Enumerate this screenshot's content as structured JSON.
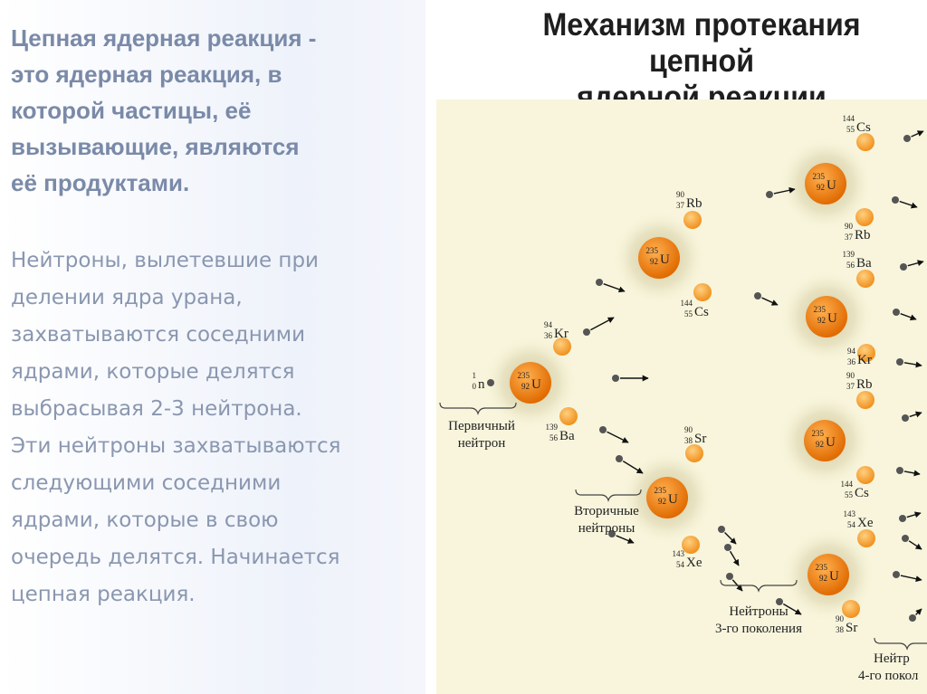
{
  "left_text": {
    "definition": "Цепная ядерная реакция -\nэто ядерная реакция, в\nкоторой частицы, её\nвызывающие, являются\nеё продуктами.",
    "explanation": "Нейтроны, вылетевшие при\nделении ядра урана,\nзахватываются соседними\nядрами, которые делятся\nвыбрасывая 2-3 нейтрона.\nЭти нейтроны захватываются\nследующими соседними\nядрами, которые в свою\nочередь делятся. Начинается\nцепная реакция."
  },
  "diagram": {
    "title": "Механизм протекания цепной\nядерной реакции",
    "uranium": {
      "a": "235",
      "z": "92",
      "sym": "U"
    },
    "primary_neutron": {
      "a": "1",
      "z": "0",
      "sym": "n"
    },
    "fragments": [
      {
        "a": "94",
        "z": "36",
        "sym": "Kr"
      },
      {
        "a": "139",
        "z": "56",
        "sym": "Ba"
      },
      {
        "a": "90",
        "z": "37",
        "sym": "Rb"
      },
      {
        "a": "144",
        "z": "55",
        "sym": "Cs"
      },
      {
        "a": "90",
        "z": "38",
        "sym": "Sr"
      },
      {
        "a": "143",
        "z": "54",
        "sym": "Xe"
      },
      {
        "a": "144",
        "z": "55",
        "sym": "Cs"
      },
      {
        "a": "90",
        "z": "37",
        "sym": "Rb"
      },
      {
        "a": "139",
        "z": "56",
        "sym": "Ba"
      },
      {
        "a": "94",
        "z": "36",
        "sym": "Kr"
      },
      {
        "a": "90",
        "z": "37",
        "sym": "Rb"
      },
      {
        "a": "144",
        "z": "55",
        "sym": "Cs"
      },
      {
        "a": "143",
        "z": "54",
        "sym": "Xe"
      },
      {
        "a": "90",
        "z": "38",
        "sym": "Sr"
      }
    ],
    "labels": {
      "primary": [
        "Первичный",
        "нейтрон"
      ],
      "secondary": [
        "Вторичные",
        "нейтроны"
      ],
      "third": [
        "Нейтроны",
        "3-го поколения"
      ],
      "fourth": [
        "Нейтр",
        "4-го покол"
      ]
    },
    "colors": {
      "background": "#f8f5dc",
      "nucleus": "#f07a10",
      "fragment": "#f59a30",
      "glow": "#d8d2a8"
    }
  }
}
